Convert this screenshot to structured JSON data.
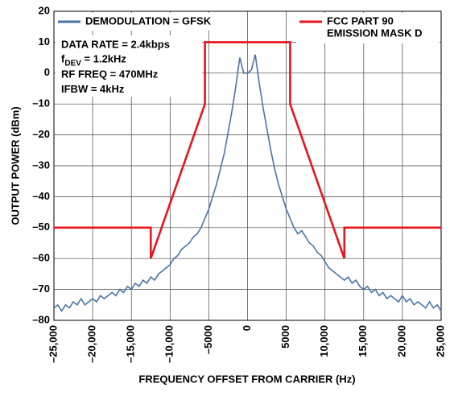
{
  "chart_data": {
    "type": "line",
    "xlabel": "FREQUENCY OFFSET FROM CARRIER (Hz)",
    "ylabel": "OUTPUT POWER (dBm)",
    "xlim": [
      -25000,
      25000
    ],
    "ylim": [
      -80,
      20
    ],
    "grid": true,
    "xticks": [
      {
        "value": -25000,
        "label": "–25,000"
      },
      {
        "value": -20000,
        "label": "–20,000"
      },
      {
        "value": -15000,
        "label": "–15,000"
      },
      {
        "value": -10000,
        "label": "–10,000"
      },
      {
        "value": -5000,
        "label": "–5000"
      },
      0,
      5000,
      {
        "value": 10000,
        "label": "10,000"
      },
      {
        "value": 15000,
        "label": "15,000"
      },
      {
        "value": 20000,
        "label": "20,000"
      },
      {
        "value": 25000,
        "label": "25,000"
      }
    ],
    "yticks": [
      {
        "value": -80,
        "label": "–80"
      },
      {
        "value": -70,
        "label": "–70"
      },
      {
        "value": -60,
        "label": "–60"
      },
      {
        "value": -50,
        "label": "–50"
      },
      {
        "value": -40,
        "label": "–40"
      },
      {
        "value": -30,
        "label": "–30"
      },
      {
        "value": -20,
        "label": "–20"
      },
      {
        "value": -10,
        "label": "–10"
      },
      0,
      10,
      20
    ],
    "annotations": [
      "DATA RATE = 2.4kbps",
      {
        "main": "f",
        "sub": "DEV",
        "rest": " = 1.2kHz"
      },
      "RF FREQ = 470MHz",
      "IFBW = 4kHz"
    ],
    "series": [
      {
        "name": "DEMODULATION = GFSK",
        "color": "#4a74a8",
        "x": [
          -25000,
          -24500,
          -24000,
          -23500,
          -23000,
          -22500,
          -22000,
          -21500,
          -21000,
          -20500,
          -20000,
          -19500,
          -19000,
          -18500,
          -18000,
          -17500,
          -17000,
          -16500,
          -16000,
          -15500,
          -15000,
          -14500,
          -14000,
          -13500,
          -13000,
          -12500,
          -12000,
          -11500,
          -11000,
          -10500,
          -10000,
          -9500,
          -9000,
          -8500,
          -8000,
          -7500,
          -7000,
          -6500,
          -6000,
          -5500,
          -5000,
          -4500,
          -4000,
          -3500,
          -3000,
          -2500,
          -2000,
          -1500,
          -1000,
          -500,
          0,
          500,
          1000,
          1500,
          2000,
          2500,
          3000,
          3500,
          4000,
          4500,
          5000,
          5500,
          6000,
          6500,
          7000,
          7500,
          8000,
          8500,
          9000,
          9500,
          10000,
          10500,
          11000,
          11500,
          12000,
          12500,
          13000,
          13500,
          14000,
          14500,
          15000,
          15500,
          16000,
          16500,
          17000,
          17500,
          18000,
          18500,
          19000,
          19500,
          20000,
          20500,
          21000,
          21500,
          22000,
          22500,
          23000,
          23500,
          24000,
          24500,
          25000
        ],
        "values": [
          -76,
          -75,
          -77,
          -75,
          -76,
          -74,
          -75,
          -73,
          -75,
          -74,
          -73,
          -74,
          -72,
          -73,
          -72,
          -71,
          -72,
          -70,
          -71,
          -69,
          -70,
          -68,
          -69,
          -67,
          -68,
          -66,
          -67,
          -65,
          -64,
          -63,
          -62,
          -60,
          -59,
          -57,
          -56,
          -55,
          -53,
          -52,
          -50,
          -47,
          -44,
          -40,
          -36,
          -31,
          -26,
          -19,
          -12,
          -4,
          5,
          0,
          0,
          1,
          6,
          -3,
          -11,
          -18,
          -25,
          -31,
          -36,
          -40,
          -44,
          -47,
          -50,
          -52,
          -51,
          -53,
          -55,
          -56,
          -58,
          -59,
          -61,
          -63,
          -64,
          -65,
          -66,
          -67,
          -66,
          -68,
          -67,
          -69,
          -70,
          -69,
          -71,
          -70,
          -72,
          -71,
          -73,
          -72,
          -73,
          -74,
          -72,
          -74,
          -73,
          -75,
          -74,
          -75,
          -76,
          -74,
          -76,
          -75,
          -77
        ]
      },
      {
        "name": [
          "FCC PART 90",
          "EMISSION MASK D"
        ],
        "color": "#e8141c",
        "x": [
          -25000,
          -12500,
          -12500,
          -5500,
          -5500,
          5500,
          5500,
          12500,
          12500,
          25000
        ],
        "values": [
          -50,
          -50,
          -60,
          -10,
          10,
          10,
          -10,
          -60,
          -50,
          -50
        ]
      }
    ]
  }
}
